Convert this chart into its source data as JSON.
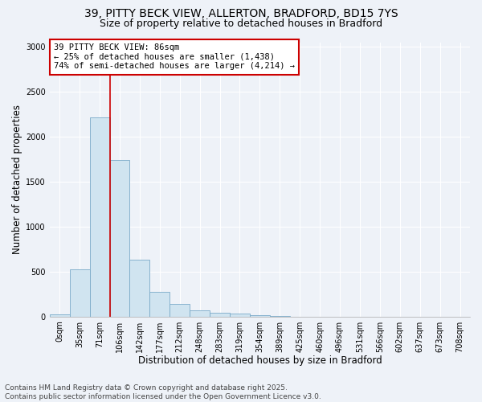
{
  "title_line1": "39, PITTY BECK VIEW, ALLERTON, BRADFORD, BD15 7YS",
  "title_line2": "Size of property relative to detached houses in Bradford",
  "xlabel": "Distribution of detached houses by size in Bradford",
  "ylabel": "Number of detached properties",
  "categories": [
    "0sqm",
    "35sqm",
    "71sqm",
    "106sqm",
    "142sqm",
    "177sqm",
    "212sqm",
    "248sqm",
    "283sqm",
    "319sqm",
    "354sqm",
    "389sqm",
    "425sqm",
    "460sqm",
    "496sqm",
    "531sqm",
    "566sqm",
    "602sqm",
    "637sqm",
    "673sqm",
    "708sqm"
  ],
  "values": [
    20,
    520,
    2210,
    1740,
    630,
    275,
    135,
    70,
    45,
    30,
    10,
    5,
    0,
    0,
    0,
    0,
    0,
    0,
    0,
    0,
    0
  ],
  "bar_color": "#d0e4f0",
  "bar_edge_color": "#7aaac8",
  "vline_color": "#cc0000",
  "vline_x_index": 2.5,
  "annotation_box_text": "39 PITTY BECK VIEW: 86sqm\n← 25% of detached houses are smaller (1,438)\n74% of semi-detached houses are larger (4,214) →",
  "annotation_box_color": "#ffffff",
  "annotation_box_edge_color": "#cc0000",
  "ylim": [
    0,
    3050
  ],
  "yticks": [
    0,
    500,
    1000,
    1500,
    2000,
    2500,
    3000
  ],
  "background_color": "#eef2f8",
  "plot_bg_color": "#eef2f8",
  "grid_color": "#ffffff",
  "footer_line1": "Contains HM Land Registry data © Crown copyright and database right 2025.",
  "footer_line2": "Contains public sector information licensed under the Open Government Licence v3.0.",
  "title_fontsize": 10,
  "subtitle_fontsize": 9,
  "axis_label_fontsize": 8.5,
  "tick_fontsize": 7,
  "annotation_fontsize": 7.5,
  "footer_fontsize": 6.5
}
